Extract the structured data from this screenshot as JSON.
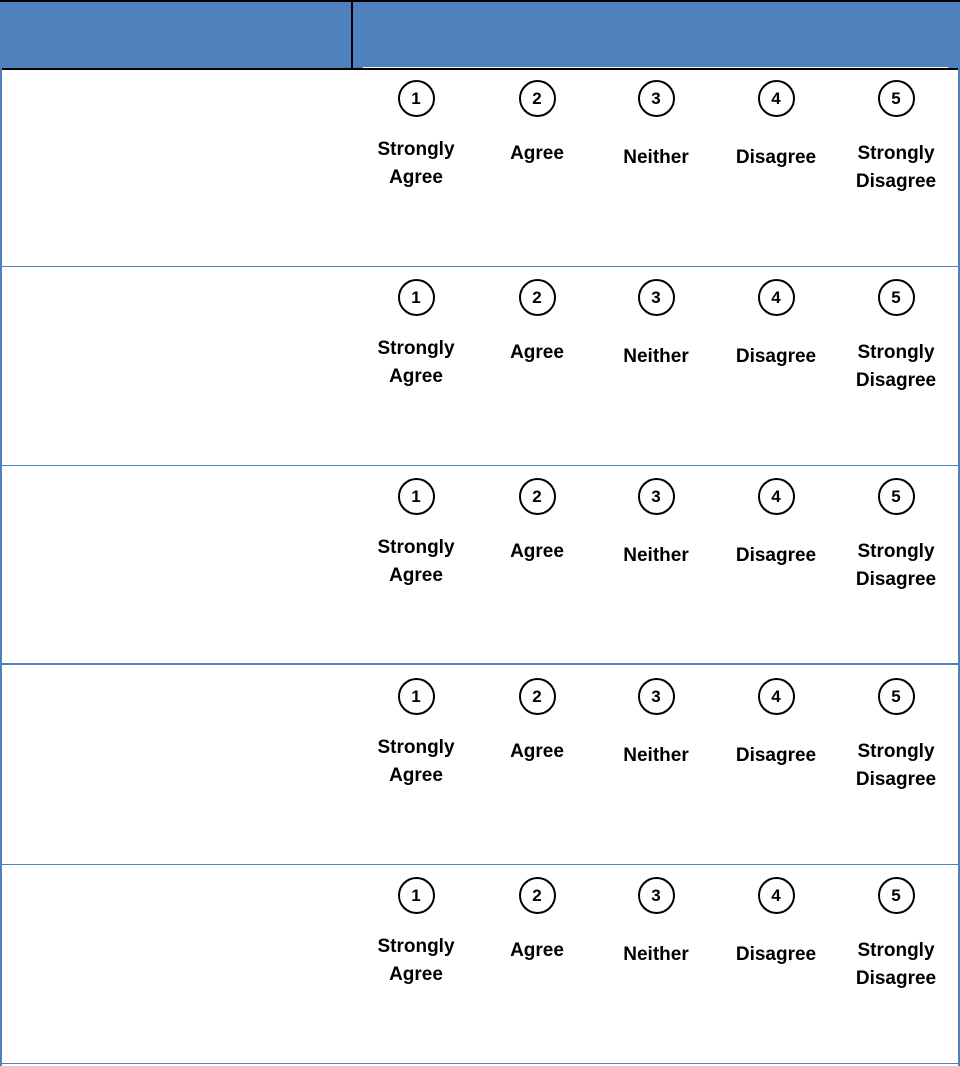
{
  "header": {
    "question_col": "",
    "scale_col": ""
  },
  "scale": [
    {
      "number": "1",
      "label": "Strongly Agree",
      "lines": [
        "Strongly",
        "Agree"
      ]
    },
    {
      "number": "2",
      "label": "Agree",
      "lines": [
        "Agree"
      ]
    },
    {
      "number": "3",
      "label": "Neither",
      "lines": [
        "Neither"
      ]
    },
    {
      "number": "4",
      "label": "Disagree",
      "lines": [
        "Disagree"
      ]
    },
    {
      "number": "5",
      "label": "Strongly Disagree",
      "lines": [
        "Strongly",
        "Disagree"
      ]
    }
  ],
  "rows": [
    {
      "question": ""
    },
    {
      "question": ""
    },
    {
      "question": ""
    },
    {
      "question": ""
    },
    {
      "question": ""
    }
  ],
  "colors": {
    "header": "#4f81bd",
    "border": "#4f81bd"
  }
}
